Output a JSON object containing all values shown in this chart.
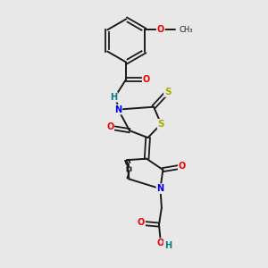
{
  "background_color": "#e8e8e8",
  "bond_color": "#1a1a1a",
  "atom_colors": {
    "N": "#0000ee",
    "O": "#ee0000",
    "S": "#aaaa00",
    "H": "#008080",
    "C": "#1a1a1a"
  },
  "figsize": [
    3.0,
    3.0
  ],
  "dpi": 100
}
